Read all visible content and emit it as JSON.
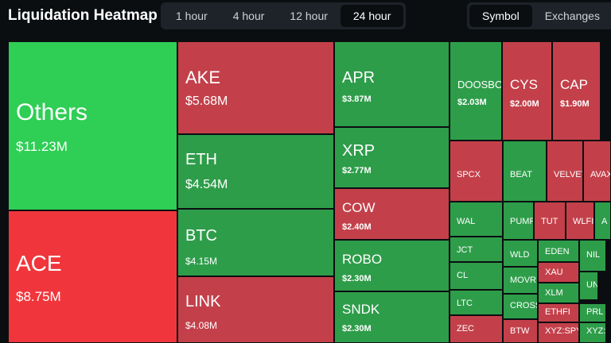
{
  "header": {
    "title": "Liquidation Heatmap",
    "time_tabs": [
      {
        "label": "1 hour",
        "active": false
      },
      {
        "label": "4 hour",
        "active": false
      },
      {
        "label": "12 hour",
        "active": false
      },
      {
        "label": "24 hour",
        "active": true
      }
    ],
    "view_tabs": [
      {
        "label": "Symbol",
        "active": true
      },
      {
        "label": "Exchanges",
        "active": false
      }
    ]
  },
  "tiles": [
    {
      "label": "Others",
      "value": "$11.23M",
      "color": "#2fce55"
    },
    {
      "label": "ACE",
      "value": "$8.75M",
      "color": "#f0363c"
    },
    {
      "label": "AKE",
      "value": "$5.68M",
      "color": "#c3404a"
    },
    {
      "label": "ETH",
      "value": "$4.54M",
      "color": "#2e9d4a"
    },
    {
      "label": "BTC",
      "value": "$4.15M",
      "color": "#2e9d4a"
    },
    {
      "label": "LINK",
      "value": "$4.08M",
      "color": "#c3404a"
    },
    {
      "label": "APR",
      "value": "$3.87M",
      "color": "#2e9d4a"
    },
    {
      "label": "XRP",
      "value": "$2.77M",
      "color": "#2e9d4a"
    },
    {
      "label": "COW",
      "value": "$2.40M",
      "color": "#c3404a"
    },
    {
      "label": "ROBO",
      "value": "$2.30M",
      "color": "#2e9d4a"
    },
    {
      "label": "SNDK",
      "value": "$2.30M",
      "color": "#2e9d4a"
    },
    {
      "label": "DOOSBO",
      "value": "$2.03M",
      "color": "#2e9d4a"
    },
    {
      "label": "CYS",
      "value": "$2.00M",
      "color": "#c3404a"
    },
    {
      "label": "CAP",
      "value": "$1.90M",
      "color": "#c3404a"
    },
    {
      "label": "SPCX",
      "color": "#c3404a"
    },
    {
      "label": "BEAT",
      "color": "#2e9d4a"
    },
    {
      "label": "VELVET",
      "color": "#c3404a"
    },
    {
      "label": "AVAX",
      "color": "#c3404a"
    },
    {
      "label": "WAL",
      "color": "#2e9d4a"
    },
    {
      "label": "JCT",
      "color": "#2e9d4a"
    },
    {
      "label": "CL",
      "color": "#2e9d4a"
    },
    {
      "label": "LTC",
      "color": "#2e9d4a"
    },
    {
      "label": "ZEC",
      "color": "#c3404a"
    },
    {
      "label": "PUMP",
      "color": "#2e9d4a"
    },
    {
      "label": "TUT",
      "color": "#c3404a"
    },
    {
      "label": "WLFI",
      "color": "#c3404a"
    },
    {
      "label": "A",
      "color": "#2e9d4a"
    },
    {
      "label": "WLD",
      "color": "#2e9d4a"
    },
    {
      "label": "EDEN",
      "color": "#2e9d4a"
    },
    {
      "label": "NIL",
      "color": "#2e9d4a"
    },
    {
      "label": "XAU",
      "color": "#c3404a"
    },
    {
      "label": "MOVR",
      "color": "#2e9d4a"
    },
    {
      "label": "XLM",
      "color": "#2e9d4a"
    },
    {
      "label": "UNI",
      "color": "#2e9d4a"
    },
    {
      "label": "CROSS",
      "color": "#2e9d4a"
    },
    {
      "label": "ETHFI",
      "color": "#c3404a"
    },
    {
      "label": "PRL",
      "color": "#2e9d4a"
    },
    {
      "label": "BTW",
      "color": "#c3404a"
    },
    {
      "label": "XYZ:SPY",
      "color": "#c3404a"
    },
    {
      "label": "XYZ:SP",
      "color": "#2e9d4a"
    }
  ]
}
